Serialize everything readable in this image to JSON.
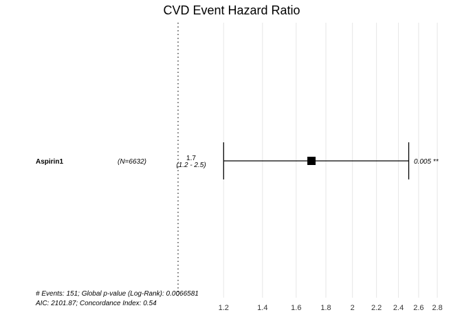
{
  "chart_data": {
    "type": "forest",
    "title": "CVD Event Hazard Ratio",
    "x_scale": "log",
    "xlim": [
      1.17,
      2.83
    ],
    "x_ticks": [
      1.2,
      1.4,
      1.6,
      1.8,
      2,
      2.2,
      2.4,
      2.6,
      2.8
    ],
    "x_tick_labels": [
      "1.2",
      "1.4",
      "1.6",
      "1.8",
      "2",
      "2.2",
      "2.4",
      "2.6",
      "2.8"
    ],
    "reference_line": 1,
    "grid": true,
    "rows": [
      {
        "variable": "Aspirin1",
        "n": "(N=6632)",
        "estimate": 1.7,
        "ci_low": 1.2,
        "ci_high": 2.5,
        "estimate_text": "1.7",
        "ci_text": "(1.2 - 2.5)",
        "p_text": "0.005 **"
      }
    ],
    "footer": [
      "# Events: 151; Global p-value (Log-Rank): 0.0066581",
      "AIC: 2101.87; Concordance Index: 0.54"
    ]
  }
}
